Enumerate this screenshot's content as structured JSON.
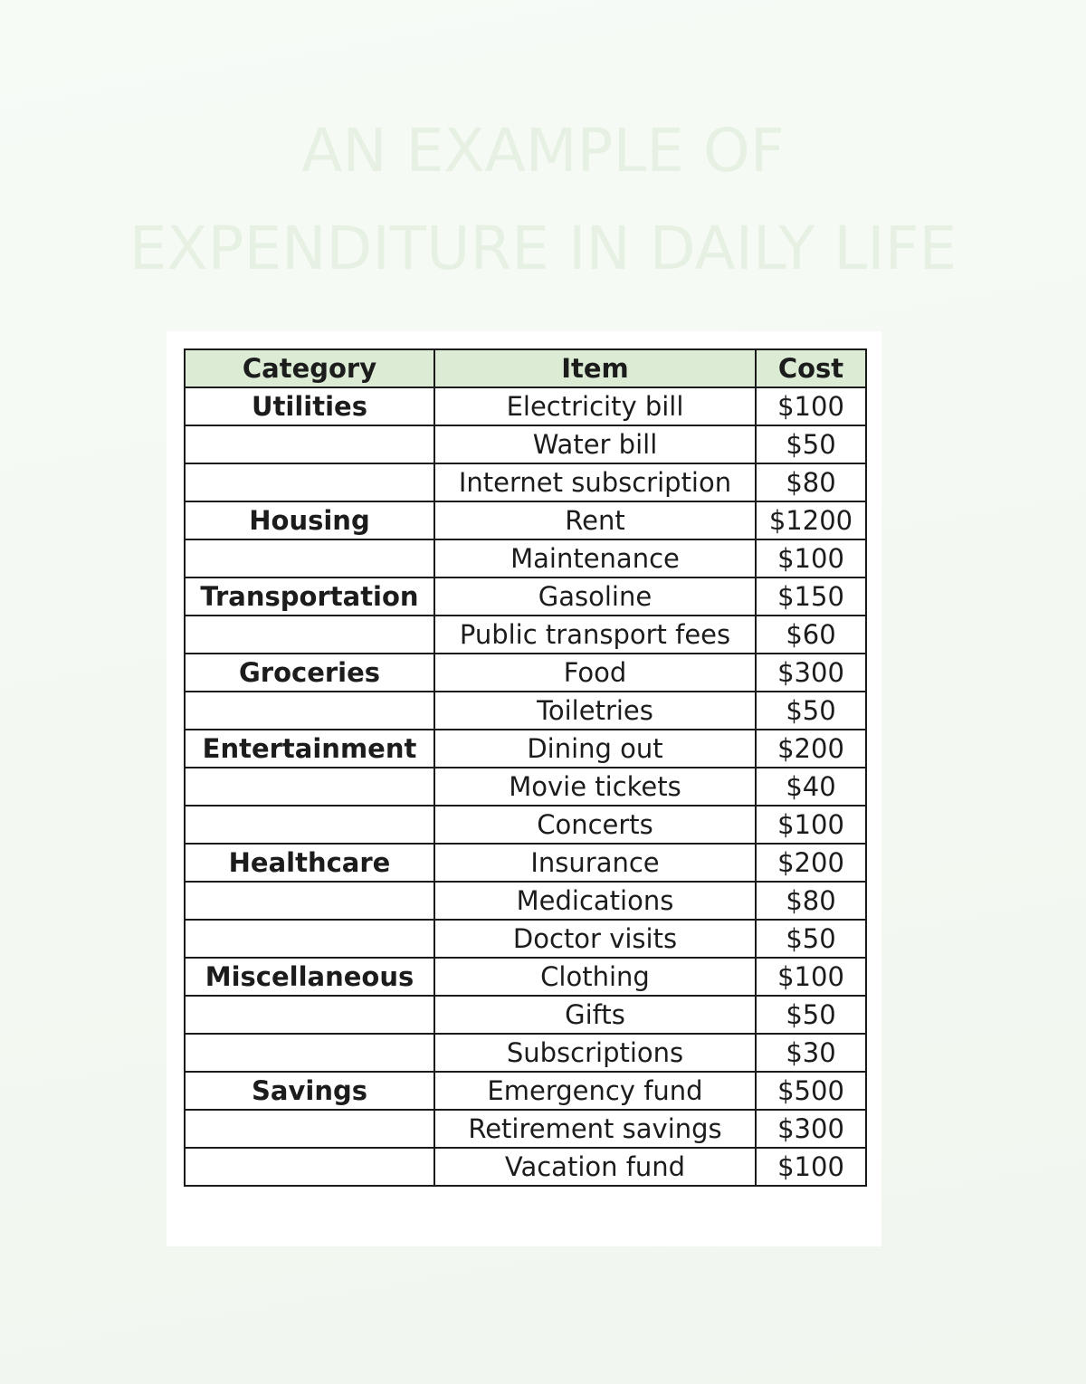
{
  "title": {
    "line1": "AN EXAMPLE OF",
    "line2": "EXPENDITURE IN DAILY LIFE"
  },
  "table": {
    "headers": [
      "Category",
      "Item",
      "Cost"
    ],
    "rows": [
      {
        "category": "Utilities",
        "item": "Electricity bill",
        "cost": "$100"
      },
      {
        "category": "",
        "item": "Water bill",
        "cost": "$50"
      },
      {
        "category": "",
        "item": "Internet subscription",
        "cost": "$80"
      },
      {
        "category": "Housing",
        "item": "Rent",
        "cost": "$1200"
      },
      {
        "category": "",
        "item": "Maintenance",
        "cost": "$100"
      },
      {
        "category": "Transportation",
        "item": "Gasoline",
        "cost": "$150"
      },
      {
        "category": "",
        "item": "Public transport fees",
        "cost": "$60"
      },
      {
        "category": "Groceries",
        "item": "Food",
        "cost": "$300"
      },
      {
        "category": "",
        "item": "Toiletries",
        "cost": "$50"
      },
      {
        "category": "Entertainment",
        "item": "Dining out",
        "cost": "$200"
      },
      {
        "category": "",
        "item": "Movie tickets",
        "cost": "$40"
      },
      {
        "category": "",
        "item": "Concerts",
        "cost": "$100"
      },
      {
        "category": "Healthcare",
        "item": "Insurance",
        "cost": "$200"
      },
      {
        "category": "",
        "item": "Medications",
        "cost": "$80"
      },
      {
        "category": "",
        "item": "Doctor visits",
        "cost": "$50"
      },
      {
        "category": "Miscellaneous",
        "item": "Clothing",
        "cost": "$100"
      },
      {
        "category": "",
        "item": "Gifts",
        "cost": "$50"
      },
      {
        "category": "",
        "item": "Subscriptions",
        "cost": "$30"
      },
      {
        "category": "Savings",
        "item": "Emergency fund",
        "cost": "$500"
      },
      {
        "category": "",
        "item": "Retirement savings",
        "cost": "$300"
      },
      {
        "category": "",
        "item": "Vacation fund",
        "cost": "$100"
      }
    ]
  },
  "colors": {
    "background": "#f5f9f3",
    "title": "#e6f1e3",
    "header_fill": "#dbebd4",
    "border": "#1a1a1a"
  }
}
